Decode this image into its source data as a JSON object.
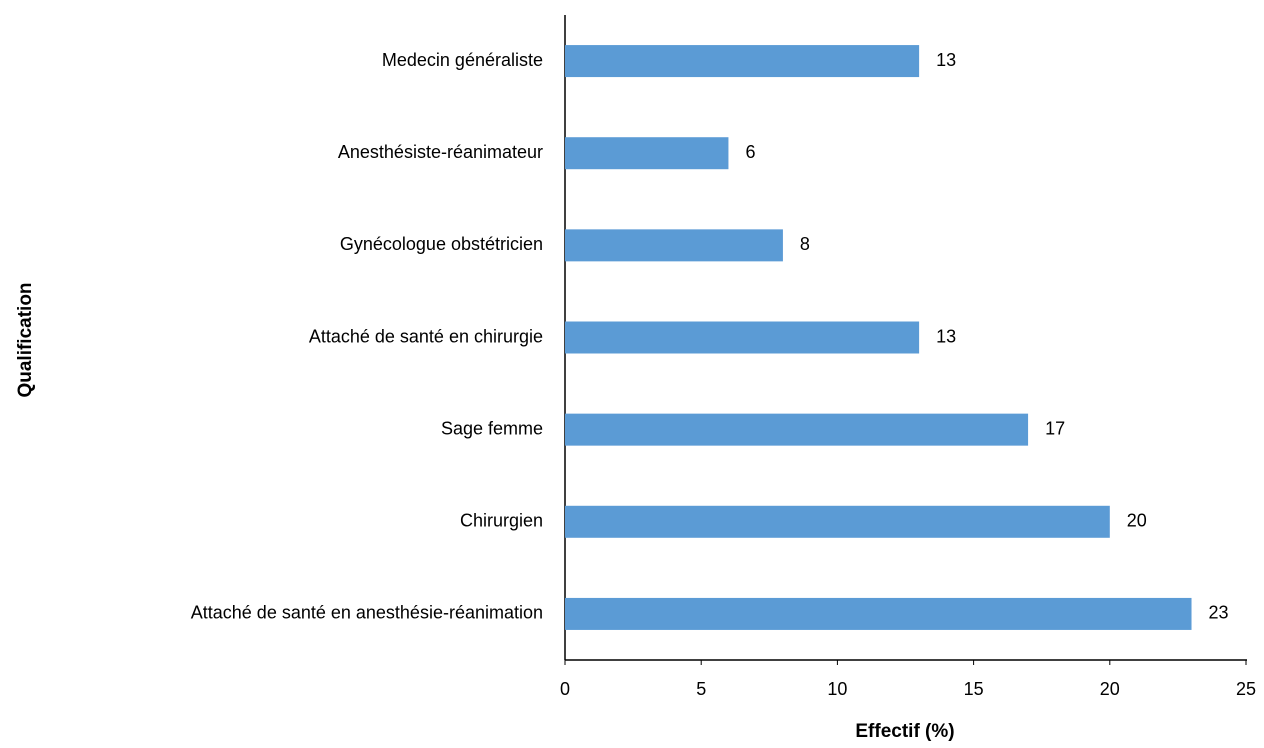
{
  "chart_data": {
    "type": "barh",
    "xlabel": "Effectif (%)",
    "ylabel": "Qualification",
    "categories": [
      "Medecin généraliste",
      "Anesthésiste-réanimateur",
      "Gynécologue obstétricien",
      "Attaché de santé en chirurgie",
      "Sage femme",
      "Chirurgien",
      "Attaché de santé en anesthésie-réanimation"
    ],
    "values": [
      13,
      6,
      8,
      13,
      17,
      20,
      23
    ],
    "color": "#5b9bd5",
    "xlim": [
      0,
      25
    ],
    "xticks": [
      0,
      5,
      10,
      15,
      20,
      25
    ],
    "grid": false
  }
}
